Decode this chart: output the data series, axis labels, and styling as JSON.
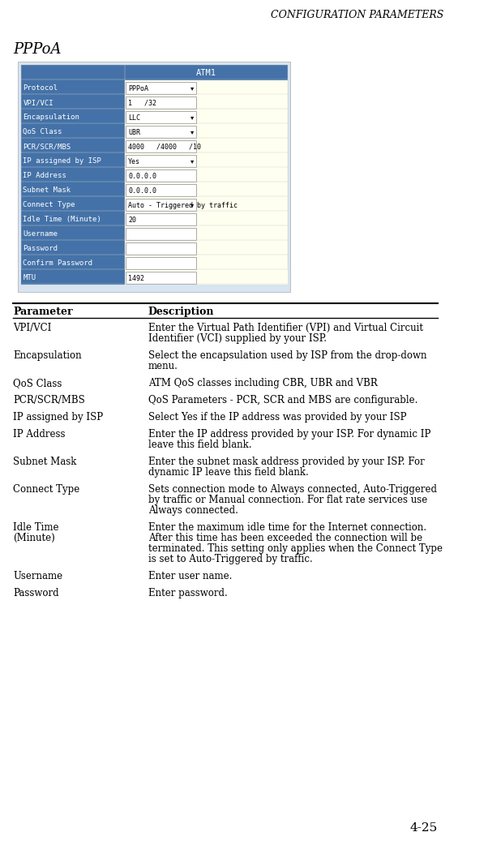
{
  "header_title": "Configuration Parameters",
  "section_title": "PPPoA",
  "page_number": "4-25",
  "table_bg": "#d8e4f0",
  "header_row_bg": "#4472a8",
  "header_row_text": "ATM1",
  "odd_row_bg": "#4472a8",
  "even_row_bg": "#fffff0",
  "field_bg": "#fffff8",
  "table_rows": [
    {
      "label": "Protocol",
      "value": "PPPoA",
      "has_dropdown": true
    },
    {
      "label": "VPI/VCI",
      "value": "1   /32",
      "has_dropdown": false
    },
    {
      "label": "Encapsulation",
      "value": "LLC",
      "has_dropdown": true
    },
    {
      "label": "QoS Class",
      "value": "UBR",
      "has_dropdown": true
    },
    {
      "label": "PCR/SCR/MBS",
      "value": "4000   /4000   /10",
      "has_dropdown": false
    },
    {
      "label": "IP assigned by ISP",
      "value": "Yes",
      "has_dropdown": true
    },
    {
      "label": "IP Address",
      "value": "0.0.0.0",
      "has_dropdown": false
    },
    {
      "label": "Subnet Mask",
      "value": "0.0.0.0",
      "has_dropdown": false
    },
    {
      "label": "Connect Type",
      "value": "Auto - Triggered by traffic",
      "has_dropdown": true
    },
    {
      "label": "Idle Time (Minute)",
      "value": "20",
      "has_dropdown": false
    },
    {
      "label": "Username",
      "value": "",
      "has_dropdown": false
    },
    {
      "label": "Password",
      "value": "",
      "has_dropdown": false
    },
    {
      "label": "Confirm Password",
      "value": "",
      "has_dropdown": false
    },
    {
      "label": "MTU",
      "value": "1492",
      "has_dropdown": false
    }
  ],
  "param_table": [
    {
      "param": "VPI/VCI",
      "desc": "Enter the Virtual Path Identifier (VPI) and Virtual Circuit\nIdentifier (VCI) supplied by your ISP."
    },
    {
      "param": "Encapsulation",
      "desc": "Select the encapsulation used by ISP from the drop-down\nmenu."
    },
    {
      "param": "QoS Class",
      "desc": "ATM QoS classes including CBR, UBR and VBR"
    },
    {
      "param": "PCR/SCR/MBS",
      "desc": "QoS Parameters - PCR, SCR and MBS are configurable."
    },
    {
      "param": "IP assigned by ISP",
      "desc": "Select Yes if the IP address was provided by your ISP"
    },
    {
      "param": "IP Address",
      "desc": "Enter the IP address provided by your ISP. For dynamic IP\nleave this field blank."
    },
    {
      "param": "Subnet Mask",
      "desc": "Enter the subnet mask address provided by your ISP. For\ndynamic IP leave this field blank."
    },
    {
      "param": "Connect Type",
      "desc": "Sets connection mode to Always connected, Auto-Triggered\nby traffic or Manual connection. For flat rate services use\nAlways connected."
    },
    {
      "param": "Idle Time\n(Minute)",
      "desc": "Enter the maximum idle time for the Internet connection.\nAfter this time has been exceeded the connection will be\nterminated. This setting only applies when the Connect Type\nis set to Auto-Triggered by traffic."
    },
    {
      "param": "Username",
      "desc": "Enter user name."
    },
    {
      "param": "Password",
      "desc": "Enter password."
    }
  ]
}
